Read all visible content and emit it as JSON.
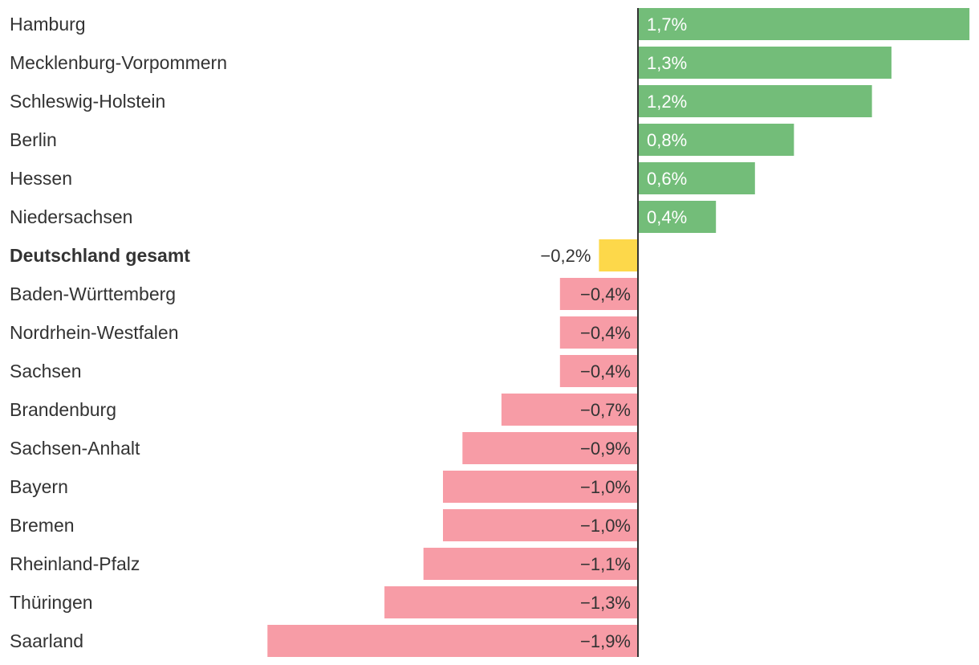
{
  "chart_data": {
    "type": "bar",
    "orientation": "horizontal",
    "categories": [
      "Hamburg",
      "Mecklenburg-Vorpommern",
      "Schleswig-Holstein",
      "Berlin",
      "Hessen",
      "Niedersachsen",
      "Deutschland gesamt",
      "Baden-Württemberg",
      "Nordrhein-Westfalen",
      "Sachsen",
      "Brandenburg",
      "Sachsen-Anhalt",
      "Bayern",
      "Bremen",
      "Rheinland-Pfalz",
      "Thüringen",
      "Saarland"
    ],
    "values": [
      1.7,
      1.3,
      1.2,
      0.8,
      0.6,
      0.4,
      -0.2,
      -0.4,
      -0.4,
      -0.4,
      -0.7,
      -0.9,
      -1.0,
      -1.0,
      -1.1,
      -1.3,
      -1.9
    ],
    "value_labels": [
      "1,7%",
      "1,3%",
      "1,2%",
      "0,8%",
      "0,6%",
      "0,4%",
      "−0,2%",
      "−0,4%",
      "−0,4%",
      "−0,4%",
      "−0,7%",
      "−0,9%",
      "−1,0%",
      "−1,0%",
      "−1,1%",
      "−1,3%",
      "−1,9%"
    ],
    "highlight_category": "Deutschland gesamt",
    "title": "",
    "xlabel": "",
    "ylabel": "",
    "xlim": [
      -1.9,
      1.7
    ],
    "grid": false,
    "legend": "none",
    "colors": {
      "positive": "#73bd79",
      "negative": "#f79ca6",
      "highlight": "#fdd84a",
      "axis": "#333333",
      "text": "#333333",
      "label_on_positive": "#ffffff"
    }
  }
}
